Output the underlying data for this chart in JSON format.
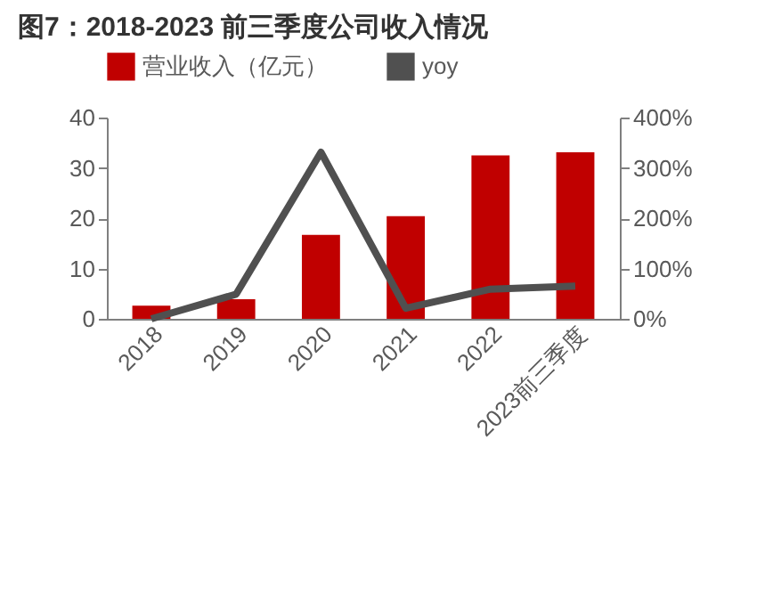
{
  "chart_data": {
    "type": "bar",
    "title": "图7：2018-2023 前三季度公司收入情况",
    "categories": [
      "2018",
      "2019",
      "2020",
      "2021",
      "2022",
      "2023前三季度"
    ],
    "series": [
      {
        "name": "营业收入（亿元）",
        "color": "#c00000",
        "values": [
          2.6,
          3.9,
          16.7,
          20.4,
          32.5,
          33.1
        ]
      },
      {
        "name": "yoy",
        "type": "line",
        "axis": "y2",
        "color": "#505050",
        "values": [
          0,
          49,
          331,
          21,
          59,
          65
        ]
      }
    ],
    "ylim": [
      0,
      40
    ],
    "yticks": [
      0,
      10,
      20,
      30,
      40
    ],
    "y2lim": [
      0,
      400
    ],
    "y2ticks": [
      {
        "value": 0,
        "label": "0%"
      },
      {
        "value": 100,
        "label": "100%"
      },
      {
        "value": 200,
        "label": "200%"
      },
      {
        "value": 300,
        "label": "300%"
      },
      {
        "value": 400,
        "label": "400%"
      }
    ],
    "legend": "top",
    "grid": false
  }
}
